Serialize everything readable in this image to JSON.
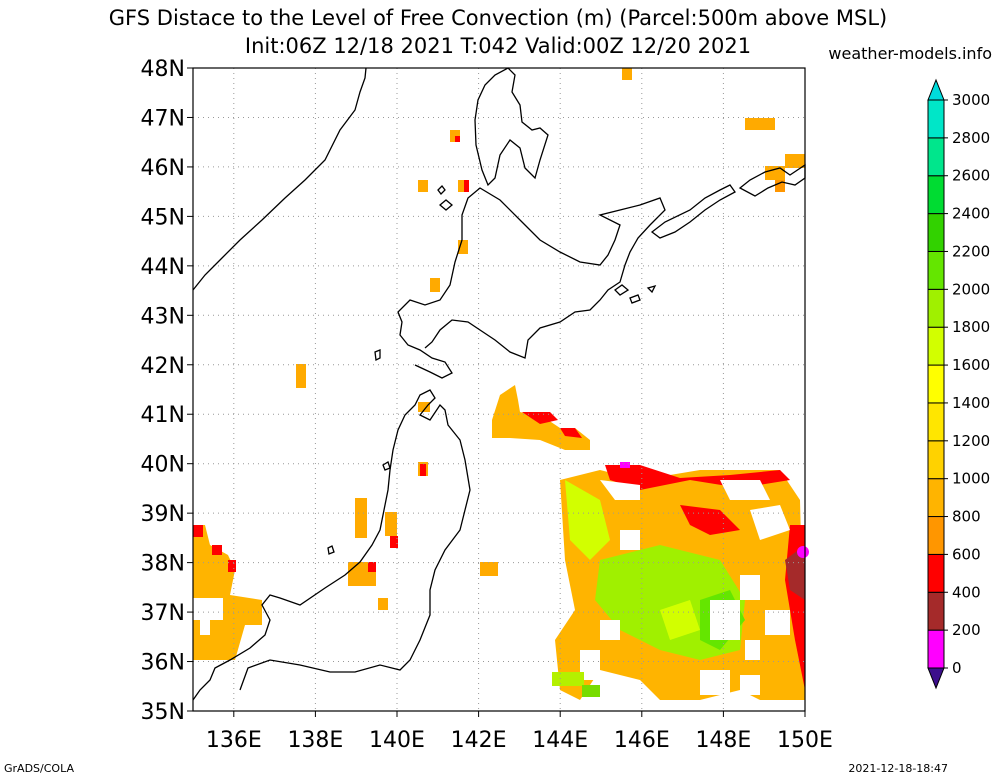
{
  "title_line1": "GFS Distace to the Level of Free Convection (m) (Parcel:500m above MSL)",
  "title_line2": "Init:06Z 12/18 2021 T:042 Valid:00Z 12/20 2021",
  "brand": "weather-models.info",
  "footer_left": "GrADS/COLA",
  "footer_right": "2021-12-18-18:47",
  "lat_labels": [
    "35N",
    "36N",
    "37N",
    "38N",
    "39N",
    "40N",
    "41N",
    "42N",
    "43N",
    "44N",
    "45N",
    "46N",
    "47N",
    "48N"
  ],
  "lon_labels": [
    "136E",
    "138E",
    "140E",
    "142E",
    "144E",
    "146E",
    "148E",
    "150E"
  ],
  "colorbar": {
    "labels": [
      "0",
      "200",
      "400",
      "600",
      "800",
      "1000",
      "1200",
      "1400",
      "1600",
      "1800",
      "2000",
      "2200",
      "2400",
      "2600",
      "2800",
      "3000"
    ],
    "colors": [
      "#3c0e8c",
      "#ff00ff",
      "#a52a2a",
      "#ff0000",
      "#ff9600",
      "#ffb400",
      "#ffd200",
      "#ffe600",
      "#ffff00",
      "#d2ff00",
      "#a0f000",
      "#64e600",
      "#32d200",
      "#00dc32",
      "#00e68c",
      "#00e6c8",
      "#00dcdc"
    ]
  },
  "colors": {
    "coast": "#000000",
    "grid": "#999999",
    "orange": "#ffaa00",
    "red": "#ff0000",
    "yellow_green": "#b4f000",
    "light_green": "#78dc00"
  }
}
